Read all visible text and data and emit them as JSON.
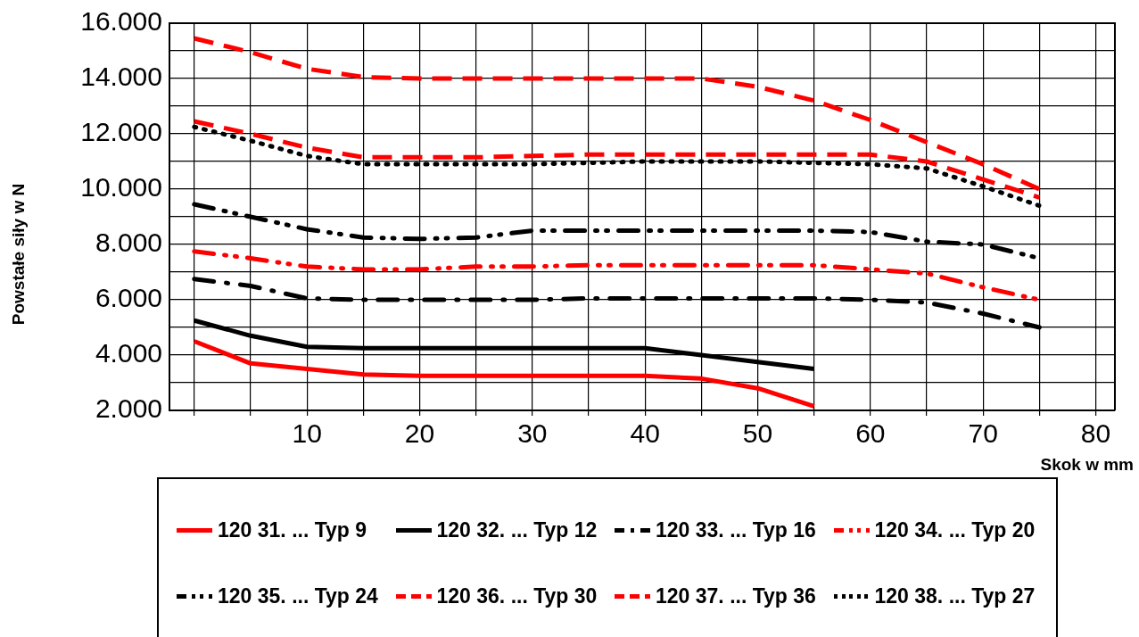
{
  "chart_data": {
    "type": "line",
    "xlabel": "Skok w mm",
    "ylabel": "Powstałe siły w N",
    "x": [
      0,
      5,
      10,
      15,
      20,
      25,
      30,
      35,
      40,
      45,
      50,
      55,
      60,
      65,
      70,
      75
    ],
    "xlim": [
      -2.2,
      81.7
    ],
    "xticks": [
      {
        "value": 0,
        "label": null
      },
      {
        "value": 5,
        "label": null
      },
      10,
      {
        "value": 15,
        "label": null
      },
      20,
      {
        "value": 25,
        "label": null
      },
      30,
      {
        "value": 35,
        "label": null
      },
      40,
      {
        "value": 45,
        "label": null
      },
      50,
      {
        "value": 55,
        "label": null
      },
      60,
      {
        "value": 65,
        "label": null
      },
      70,
      {
        "value": 75,
        "label": null
      },
      80
    ],
    "ylim": [
      2000,
      16000
    ],
    "yticks": [
      {
        "value": 2000,
        "label": "2.000"
      },
      {
        "value": 3000,
        "label": null
      },
      {
        "value": 4000,
        "label": "4.000"
      },
      {
        "value": 5000,
        "label": null
      },
      {
        "value": 6000,
        "label": "6.000"
      },
      {
        "value": 7000,
        "label": null
      },
      {
        "value": 8000,
        "label": "8.000"
      },
      {
        "value": 9000,
        "label": null
      },
      {
        "value": 10000,
        "label": "10.000"
      },
      {
        "value": 11000,
        "label": null
      },
      {
        "value": 12000,
        "label": "12.000"
      },
      {
        "value": 13000,
        "label": null
      },
      {
        "value": 14000,
        "label": "14.000"
      },
      {
        "value": 15000,
        "label": null
      },
      {
        "value": 16000,
        "label": "16.000"
      }
    ],
    "grid": true,
    "legend": "bottom",
    "marker": "none",
    "series": [
      {
        "name": "120 31. ... Typ 9",
        "color": "#ff0000",
        "line_style": "solid",
        "values": [
          4500,
          3700,
          3500,
          3300,
          3250,
          3250,
          3250,
          3250,
          3250,
          3150,
          2800,
          2150,
          null,
          null,
          null,
          null
        ]
      },
      {
        "name": "120 32. ... Typ 12",
        "color": "#000000",
        "line_style": "solid",
        "values": [
          5250,
          4700,
          4300,
          4250,
          4250,
          4250,
          4250,
          4250,
          4250,
          4000,
          3750,
          3500,
          null,
          null,
          null,
          null
        ]
      },
      {
        "name": "120 33. ... Typ 16",
        "color": "#000000",
        "line_style": "dashdot",
        "values": [
          6750,
          6500,
          6050,
          6000,
          6000,
          6000,
          6000,
          6050,
          6050,
          6050,
          6050,
          6050,
          6000,
          5900,
          5500,
          5000
        ]
      },
      {
        "name": "120 34. ... Typ 20",
        "color": "#ff0000",
        "line_style": "dashdotdot",
        "values": [
          7750,
          7500,
          7200,
          7100,
          7100,
          7200,
          7200,
          7250,
          7250,
          7250,
          7250,
          7250,
          7100,
          6950,
          6450,
          6000
        ]
      },
      {
        "name": "120 35. ... Typ 24",
        "color": "#000000",
        "line_style": "dashdotdot",
        "values": [
          9450,
          9000,
          8550,
          8250,
          8200,
          8250,
          8500,
          8500,
          8500,
          8500,
          8500,
          8500,
          8450,
          8100,
          8000,
          7500
        ]
      },
      {
        "name": "120 36. ... Typ 30",
        "color": "#ff0000",
        "line_style": "dashed",
        "values": [
          12450,
          12000,
          11500,
          11150,
          11150,
          11150,
          11200,
          11250,
          11250,
          11250,
          11250,
          11250,
          11250,
          11000,
          10350,
          9700
        ]
      },
      {
        "name": "120 37. ... Typ 36",
        "color": "#ff0000",
        "line_style": "dashed",
        "values": [
          15450,
          14950,
          14350,
          14050,
          14000,
          14000,
          14000,
          14000,
          14000,
          14000,
          13700,
          13200,
          12500,
          11700,
          10900,
          10000
        ]
      },
      {
        "name": "120 38. ... Typ 27",
        "color": "#000000",
        "line_style": "dotted",
        "values": [
          12250,
          11750,
          11200,
          10900,
          10900,
          10900,
          10900,
          10950,
          11000,
          11000,
          11000,
          10950,
          10900,
          10750,
          10100,
          9400
        ]
      }
    ]
  }
}
